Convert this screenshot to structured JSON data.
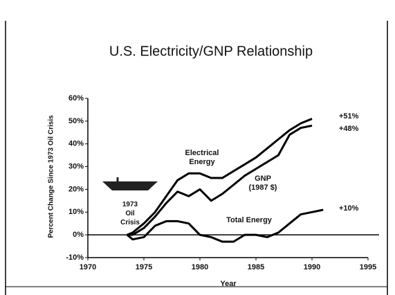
{
  "chart_data": {
    "type": "line",
    "title": "U.S. Electricity/GNP Relationship",
    "xlabel": "Year",
    "ylabel": "Percent Change Since 1973 Oil Crisis",
    "x": [
      1973.5,
      1974,
      1975,
      1976,
      1977,
      1978,
      1979,
      1980,
      1981,
      1982,
      1983,
      1984,
      1985,
      1986,
      1987,
      1988,
      1989,
      1990,
      1991
    ],
    "series": [
      {
        "name": "Electrical Energy",
        "color": "#000000",
        "values": [
          0,
          1,
          5,
          10,
          17,
          24,
          27,
          27,
          25,
          25,
          28,
          31,
          34,
          38,
          42,
          46,
          49,
          51,
          null
        ]
      },
      {
        "name": "GNP (1987 $)",
        "color": "#000000",
        "values": [
          0,
          0,
          3,
          8,
          14,
          19,
          17,
          20,
          15,
          18,
          22,
          26,
          29,
          32,
          35,
          44,
          47,
          48,
          null
        ]
      },
      {
        "name": "Total Energy",
        "color": "#000000",
        "values": [
          0,
          -2,
          -1,
          4,
          6,
          6,
          5,
          0,
          -1,
          -3,
          -3,
          0,
          0,
          -1,
          1,
          5,
          9,
          10,
          11
        ]
      }
    ],
    "annotations": [
      "+51%",
      "+48%",
      "+10%",
      "1973 Oil Crisis"
    ],
    "xlim": [
      1970,
      1995
    ],
    "xticks": [
      1970,
      1975,
      1980,
      1985,
      1990,
      1995
    ],
    "ylim": [
      -10,
      60
    ],
    "yticks": [
      {
        "value": -10,
        "label": "-10%"
      },
      {
        "value": 0,
        "label": "0%"
      },
      {
        "value": 10,
        "label": "10%"
      },
      {
        "value": 20,
        "label": "20%"
      },
      {
        "value": 30,
        "label": "30%"
      },
      {
        "value": 40,
        "label": "40%"
      },
      {
        "value": 50,
        "label": "50%"
      },
      {
        "value": 60,
        "label": "60%"
      }
    ],
    "grid": false
  }
}
